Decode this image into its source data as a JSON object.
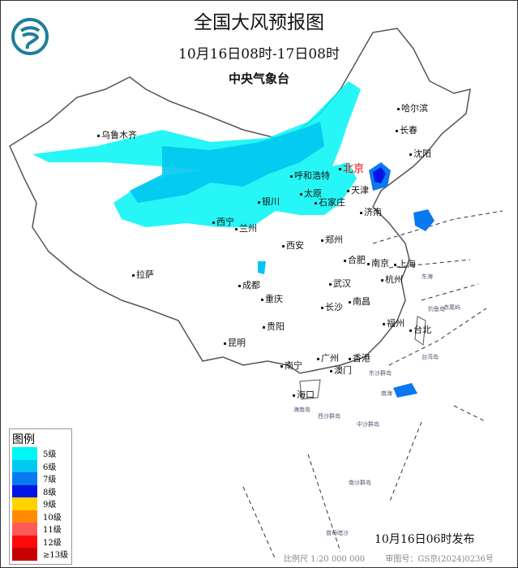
{
  "header": {
    "title": "全国大风预报图",
    "subtitle": "10月16日08时-17日08时",
    "organization": "中央气象台",
    "logo_icon": "cma-logo-icon"
  },
  "cities": [
    "乌鲁木齐",
    "哈尔滨",
    "长春",
    "沈阳",
    "北京",
    "天津",
    "呼和浩特",
    "太原",
    "石家庄",
    "银川",
    "济南",
    "西宁",
    "兰州",
    "西安",
    "郑州",
    "合肥",
    "南京",
    "上海",
    "拉萨",
    "成都",
    "武汉",
    "杭州",
    "重庆",
    "长沙",
    "南昌",
    "福州",
    "台北",
    "贵阳",
    "昆明",
    "广州",
    "香港",
    "澳门",
    "南宁",
    "海口"
  ],
  "seas": [
    "东海",
    "南海",
    "东沙群岛",
    "西沙群岛",
    "中沙群岛",
    "南沙群岛",
    "曾母暗沙",
    "台湾岛",
    "海南岛",
    "钓鱼岛",
    "赤尾屿"
  ],
  "legend": {
    "title": "图例",
    "items": [
      {
        "label": "5级",
        "color": "#00f5f5"
      },
      {
        "label": "6级",
        "color": "#00c8f0"
      },
      {
        "label": "7级",
        "color": "#0a78f0"
      },
      {
        "label": "8级",
        "color": "#0014e6"
      },
      {
        "label": "9级",
        "color": "#ffd200"
      },
      {
        "label": "10级",
        "color": "#ff8c00"
      },
      {
        "label": "11级",
        "color": "#ff5a5a"
      },
      {
        "label": "12级",
        "color": "#ff0a0a"
      },
      {
        "label": "≥13级",
        "color": "#c80000"
      }
    ]
  },
  "issue_time": "10月16日06时发布",
  "footer": {
    "scale": "比例尺 1:20 000 000",
    "approval": "审图号：GS京(2024)0236号"
  }
}
